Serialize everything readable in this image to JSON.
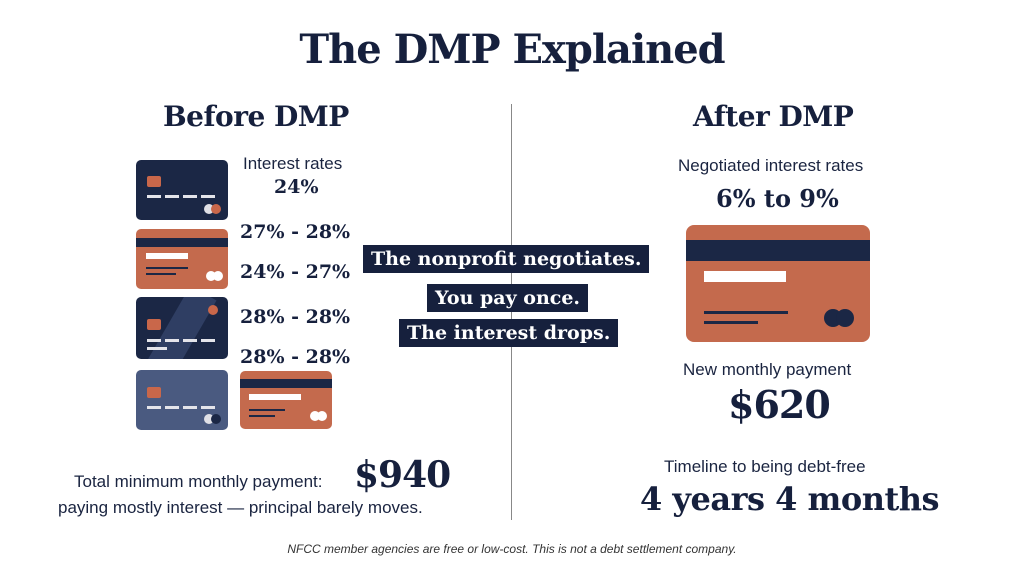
{
  "title": "The DMP Explained",
  "before": {
    "heading": "Before DMP",
    "rates_label": "Interest rates",
    "rates": [
      "24%",
      "27% - 28%",
      "24% - 27%",
      "28% - 28%",
      "28% - 28%"
    ],
    "payment_label": "Total minimum monthly payment:",
    "payment_value": "$940",
    "note": "paying mostly interest — principal barely moves."
  },
  "center": {
    "lines": [
      "The nonprofit negotiates.",
      "You pay once.",
      "The interest drops."
    ]
  },
  "after": {
    "heading": "After DMP",
    "rates_label": "Negotiated interest rates",
    "rates_value": "6% to 9%",
    "payment_label": "New monthly payment",
    "payment_value": "$620",
    "timeline_label": "Timeline to being debt-free",
    "timeline_value": "4 years 4 months"
  },
  "footer": "NFCC member agencies are free or low-cost. This is not a debt settlement company.",
  "colors": {
    "navy": "#1b2745",
    "rust": "#c46a4d",
    "slate": "#4a5a80"
  }
}
